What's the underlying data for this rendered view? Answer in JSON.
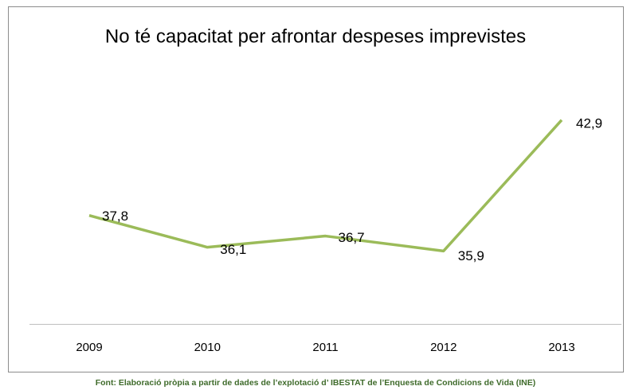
{
  "chart_data": {
    "type": "line",
    "title": "No té capacitat per afrontar despeses imprevistes",
    "categories": [
      "2009",
      "2010",
      "2011",
      "2012",
      "2013"
    ],
    "series": [
      {
        "color": "#9bbb59",
        "values": [
          37.8,
          36.1,
          36.7,
          35.9,
          42.9
        ],
        "value_labels": [
          "37,8",
          "36,1",
          "36,7",
          "35,9",
          "42,9"
        ]
      }
    ],
    "ylim": [
      32,
      44
    ],
    "source": "Font: Elaboració pròpia a partir de dades de l’explotació d’ IBESTAT de l’Enquesta de Condicions de Vida (INE)"
  }
}
